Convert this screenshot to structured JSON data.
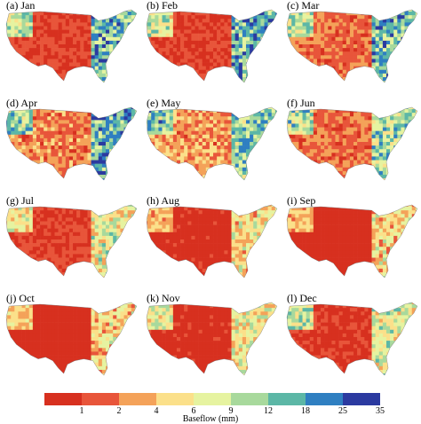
{
  "panels": [
    {
      "label": "(a) Jan",
      "wet_east": 0.8,
      "wet_nw": 0.7,
      "dry": 0.85
    },
    {
      "label": "(b) Feb",
      "wet_east": 0.82,
      "wet_nw": 0.65,
      "dry": 0.85
    },
    {
      "label": "(c) Mar",
      "wet_east": 0.78,
      "wet_nw": 0.7,
      "dry": 0.75
    },
    {
      "label": "(d) Apr",
      "wet_east": 0.85,
      "wet_nw": 0.8,
      "dry": 0.7
    },
    {
      "label": "(e) May",
      "wet_east": 0.7,
      "wet_nw": 0.85,
      "dry": 0.65
    },
    {
      "label": "(f) Jun",
      "wet_east": 0.65,
      "wet_nw": 0.75,
      "dry": 0.75
    },
    {
      "label": "(g) Jul",
      "wet_east": 0.45,
      "wet_nw": 0.55,
      "dry": 0.85
    },
    {
      "label": "(h) Aug",
      "wet_east": 0.35,
      "wet_nw": 0.4,
      "dry": 0.9
    },
    {
      "label": "(i) Sep",
      "wet_east": 0.3,
      "wet_nw": 0.4,
      "dry": 0.92
    },
    {
      "label": "(j) Oct",
      "wet_east": 0.3,
      "wet_nw": 0.45,
      "dry": 0.92
    },
    {
      "label": "(k) Nov",
      "wet_east": 0.4,
      "wet_nw": 0.6,
      "dry": 0.9
    },
    {
      "label": "(l) Dec",
      "wet_east": 0.5,
      "wet_nw": 0.7,
      "dry": 0.88
    }
  ],
  "colorbar": {
    "title": "Baseflow (mm)",
    "ticks": [
      "1",
      "2",
      "4",
      "6",
      "9",
      "12",
      "18",
      "25",
      "35"
    ],
    "colors": [
      "#d7301f",
      "#e8553a",
      "#f4a259",
      "#fbe08a",
      "#e6f3a0",
      "#a8d99c",
      "#5cb7a6",
      "#2f7fc1",
      "#2b3aa0"
    ]
  }
}
